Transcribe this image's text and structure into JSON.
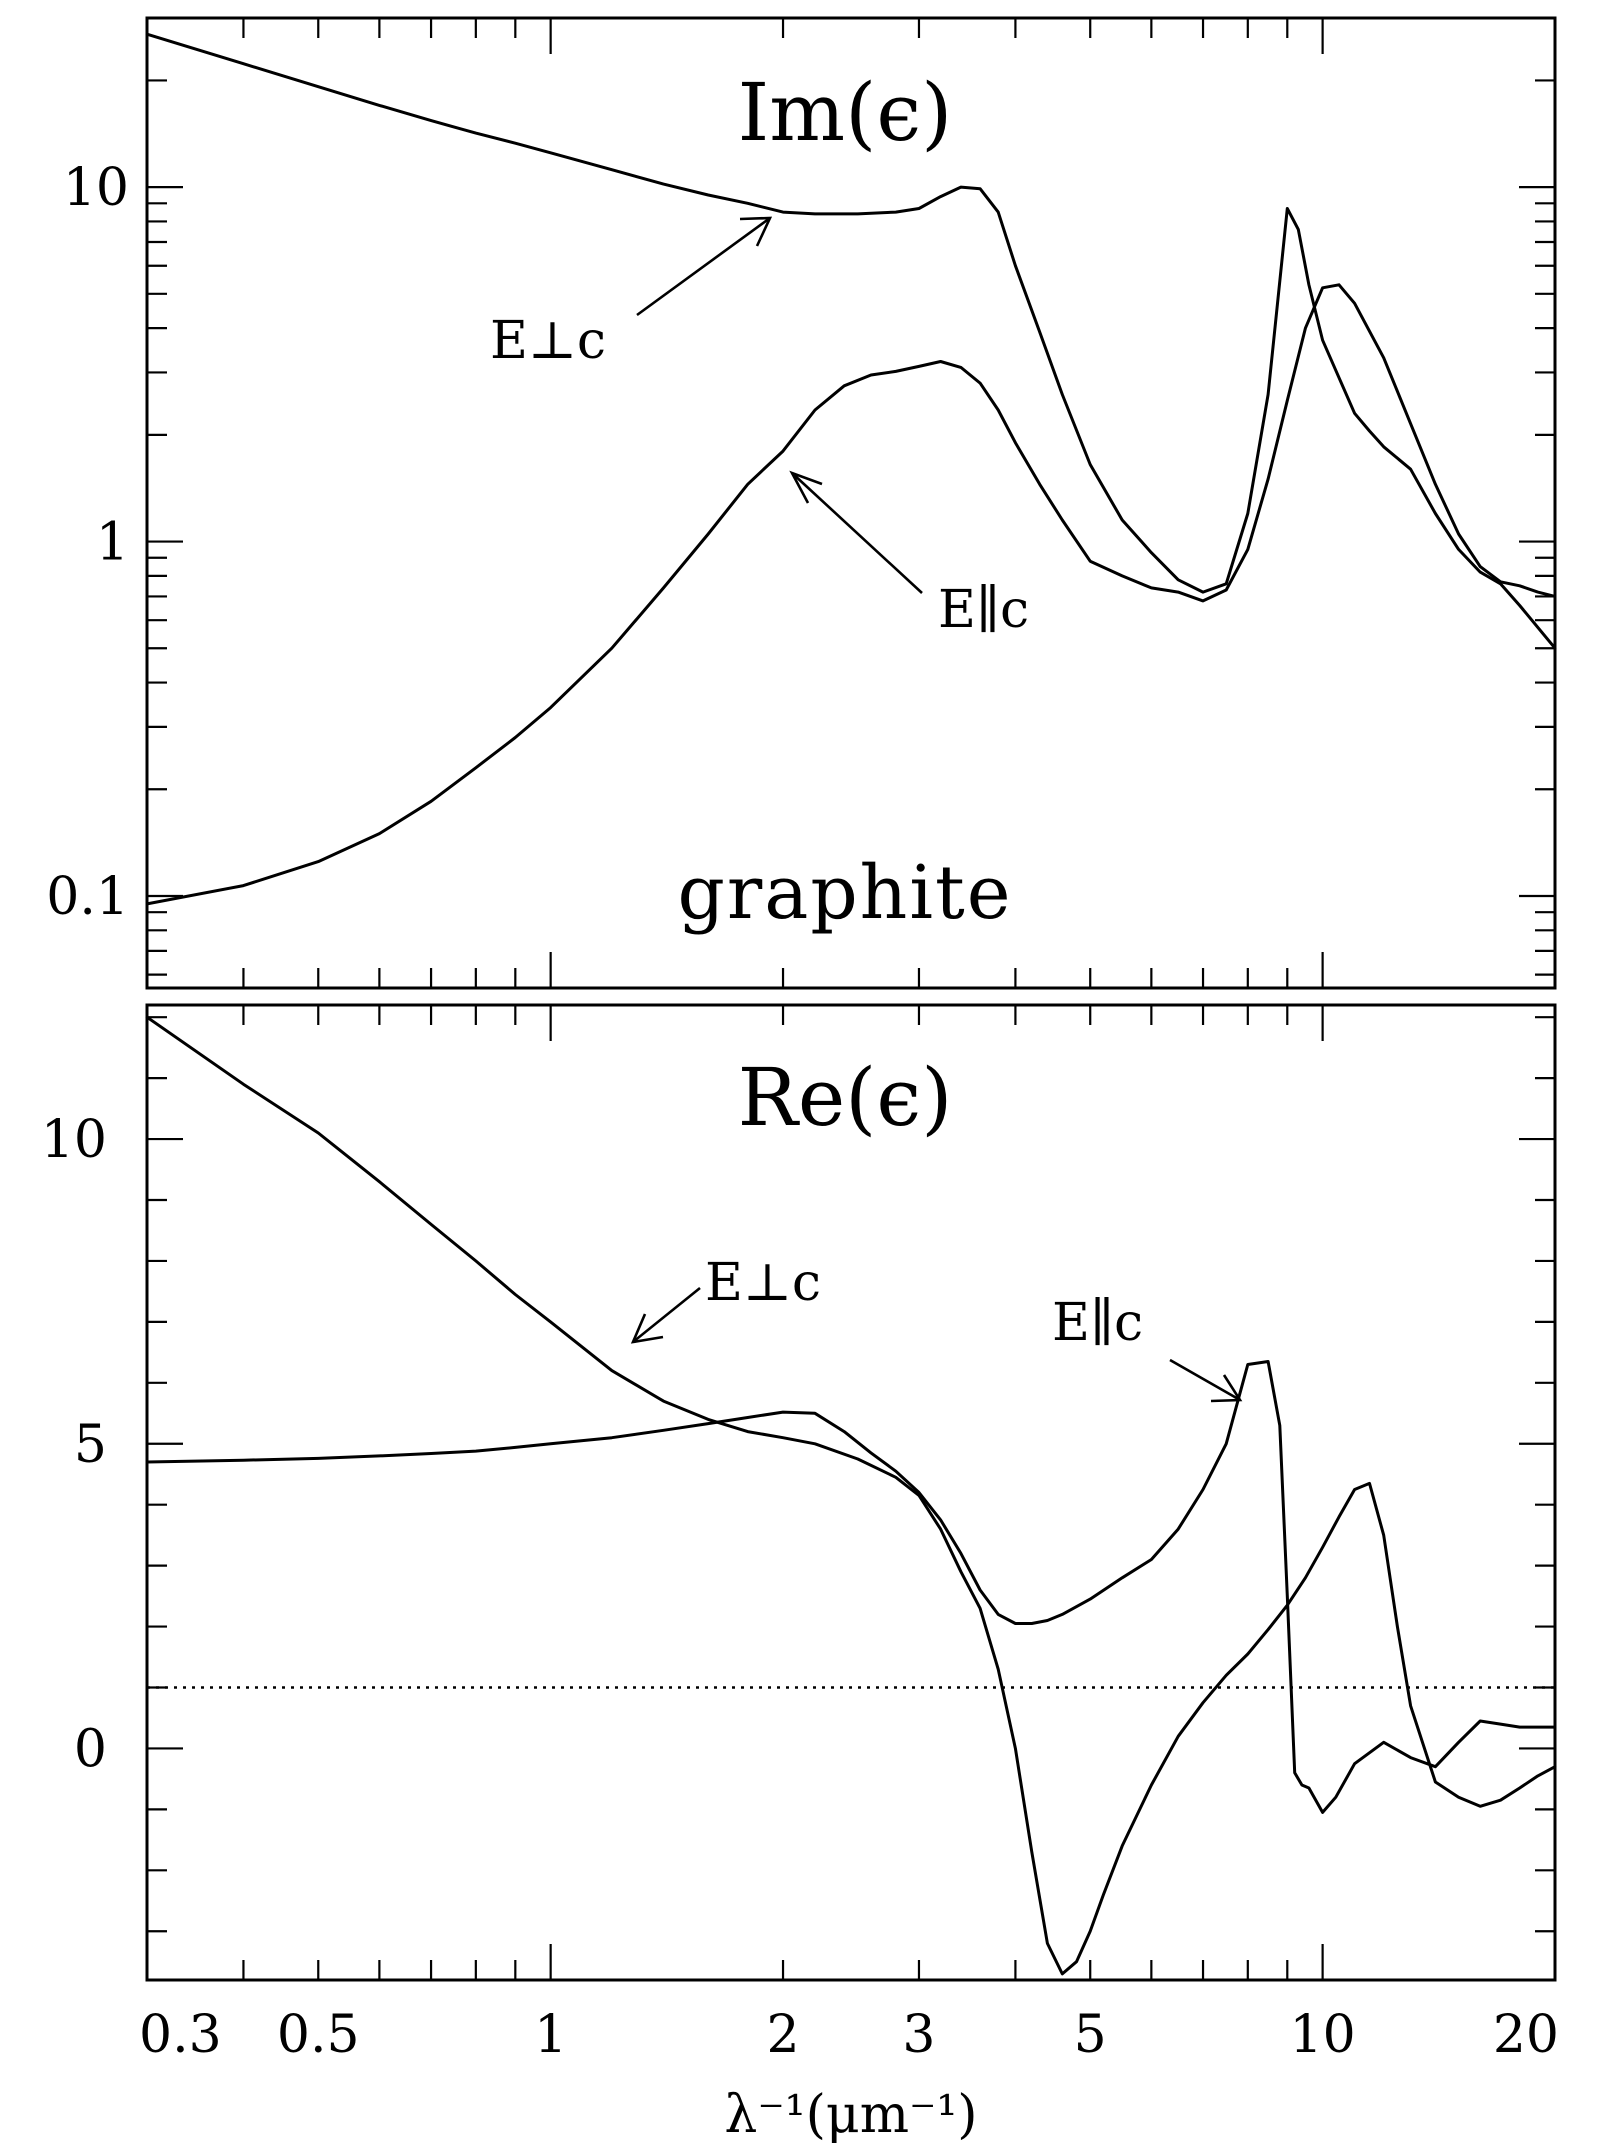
{
  "chart_data": [
    {
      "type": "line",
      "title": "Im(ϵ)",
      "annotation": "graphite",
      "yscale": "log",
      "xscale": "log",
      "ylim": [
        0.055,
        30
      ],
      "xlim": [
        0.3,
        20
      ],
      "yticklabels": [
        "0.1",
        "1",
        "10"
      ],
      "series": [
        {
          "name": "E⊥c",
          "x": [
            0.3,
            0.4,
            0.5,
            0.6,
            0.7,
            0.8,
            0.9,
            1.0,
            1.2,
            1.4,
            1.6,
            1.8,
            2.0,
            2.2,
            2.5,
            2.8,
            3.0,
            3.2,
            3.4,
            3.6,
            3.8,
            4.0,
            4.3,
            4.6,
            5.0,
            5.5,
            6.0,
            6.5,
            7.0,
            7.5,
            8.0,
            8.5,
            9.0,
            9.3,
            9.6,
            10.0,
            10.5,
            11.0,
            11.5,
            12.0,
            13.0,
            14.0,
            15.0,
            16.0,
            17.0,
            18.0,
            20.0
          ],
          "y": [
            27,
            22.3,
            19.2,
            17,
            15.4,
            14.2,
            13.3,
            12.5,
            11.2,
            10.2,
            9.5,
            9.0,
            8.5,
            8.4,
            8.4,
            8.5,
            8.7,
            9.4,
            10.0,
            9.9,
            8.5,
            6.0,
            3.9,
            2.6,
            1.65,
            1.15,
            0.93,
            0.78,
            0.72,
            0.76,
            1.2,
            2.6,
            8.7,
            7.6,
            5.3,
            3.7,
            2.9,
            2.3,
            2.05,
            1.85,
            1.6,
            1.2,
            0.95,
            0.82,
            0.76,
            0.66,
            0.5
          ]
        },
        {
          "name": "E∥c",
          "x": [
            0.3,
            0.4,
            0.5,
            0.6,
            0.7,
            0.8,
            0.9,
            1.0,
            1.2,
            1.4,
            1.6,
            1.8,
            2.0,
            2.2,
            2.4,
            2.6,
            2.8,
            3.0,
            3.2,
            3.4,
            3.6,
            3.8,
            4.0,
            4.3,
            4.6,
            5.0,
            5.5,
            6.0,
            6.5,
            7.0,
            7.5,
            8.0,
            8.5,
            9.0,
            9.5,
            10.0,
            10.5,
            11.0,
            12.0,
            13.0,
            14.0,
            15.0,
            16.0,
            17.0,
            18.0,
            19.0,
            20.0
          ],
          "y": [
            0.095,
            0.107,
            0.125,
            0.15,
            0.185,
            0.23,
            0.28,
            0.34,
            0.5,
            0.74,
            1.05,
            1.45,
            1.8,
            2.35,
            2.75,
            2.95,
            3.02,
            3.12,
            3.22,
            3.1,
            2.8,
            2.35,
            1.9,
            1.45,
            1.15,
            0.88,
            0.8,
            0.74,
            0.72,
            0.68,
            0.73,
            0.95,
            1.5,
            2.5,
            4.0,
            5.2,
            5.3,
            4.7,
            3.3,
            2.15,
            1.45,
            1.05,
            0.85,
            0.77,
            0.75,
            0.72,
            0.7
          ]
        }
      ]
    },
    {
      "type": "line",
      "title": "Re(ϵ)",
      "xscale": "log",
      "ylim": [
        -3.8,
        12.2
      ],
      "xlim": [
        0.3,
        20
      ],
      "yticklabels": [
        "0",
        "5",
        "10"
      ],
      "xticklabels": [
        "0.3",
        "0.5",
        "1",
        "2",
        "3",
        "5",
        "10",
        "20"
      ],
      "xlabel": "λ⁻¹(μm⁻¹)",
      "reference_line": {
        "y": 1,
        "style": "dotted"
      },
      "series": [
        {
          "name": "E⊥c",
          "x": [
            0.3,
            0.4,
            0.5,
            0.6,
            0.7,
            0.8,
            0.9,
            1.0,
            1.2,
            1.4,
            1.6,
            1.8,
            2.0,
            2.2,
            2.5,
            2.8,
            3.0,
            3.2,
            3.4,
            3.6,
            3.8,
            4.0,
            4.2,
            4.4,
            4.6,
            4.8,
            5.0,
            5.2,
            5.5,
            6.0,
            6.5,
            7.0,
            7.5,
            8.0,
            8.5,
            9.0,
            9.5,
            10.0,
            10.5,
            11.0,
            11.5,
            12.0,
            12.5,
            13.0,
            14.0,
            15.0,
            16.0,
            17.0,
            18.0,
            19.0,
            20.0
          ],
          "y": [
            12.0,
            10.9,
            10.1,
            9.3,
            8.6,
            8.0,
            7.45,
            7.0,
            6.2,
            5.7,
            5.4,
            5.2,
            5.1,
            5.0,
            4.75,
            4.45,
            4.15,
            3.6,
            2.9,
            2.3,
            1.3,
            0.0,
            -1.7,
            -3.2,
            -3.7,
            -3.5,
            -3.0,
            -2.4,
            -1.6,
            -0.6,
            0.2,
            0.75,
            1.2,
            1.55,
            1.95,
            2.35,
            2.8,
            3.3,
            3.8,
            4.25,
            4.35,
            3.5,
            2.0,
            0.7,
            -0.55,
            -0.8,
            -0.95,
            -0.85,
            -0.65,
            -0.45,
            -0.3
          ]
        },
        {
          "name": "E∥c",
          "x": [
            0.3,
            0.4,
            0.5,
            0.6,
            0.7,
            0.8,
            0.9,
            1.0,
            1.2,
            1.4,
            1.6,
            1.8,
            2.0,
            2.2,
            2.4,
            2.6,
            2.8,
            3.0,
            3.2,
            3.4,
            3.6,
            3.8,
            4.0,
            4.2,
            4.4,
            4.6,
            5.0,
            5.5,
            6.0,
            6.5,
            7.0,
            7.5,
            8.0,
            8.5,
            8.8,
            9.0,
            9.2,
            9.4,
            9.6,
            10.0,
            10.4,
            11.0,
            12.0,
            13.0,
            14.0,
            15.0,
            16.0,
            17.0,
            18.0,
            19.0,
            20.0
          ],
          "y": [
            4.7,
            4.73,
            4.76,
            4.8,
            4.84,
            4.88,
            4.94,
            5.0,
            5.1,
            5.22,
            5.33,
            5.43,
            5.52,
            5.5,
            5.2,
            4.85,
            4.55,
            4.2,
            3.75,
            3.2,
            2.6,
            2.2,
            2.05,
            2.05,
            2.1,
            2.2,
            2.45,
            2.8,
            3.1,
            3.6,
            4.25,
            5.0,
            6.3,
            6.35,
            5.3,
            2.5,
            -0.4,
            -0.6,
            -0.65,
            -1.05,
            -0.8,
            -0.25,
            0.1,
            -0.15,
            -0.3,
            0.1,
            0.45,
            0.4,
            0.35,
            0.35,
            0.35
          ]
        }
      ]
    }
  ]
}
